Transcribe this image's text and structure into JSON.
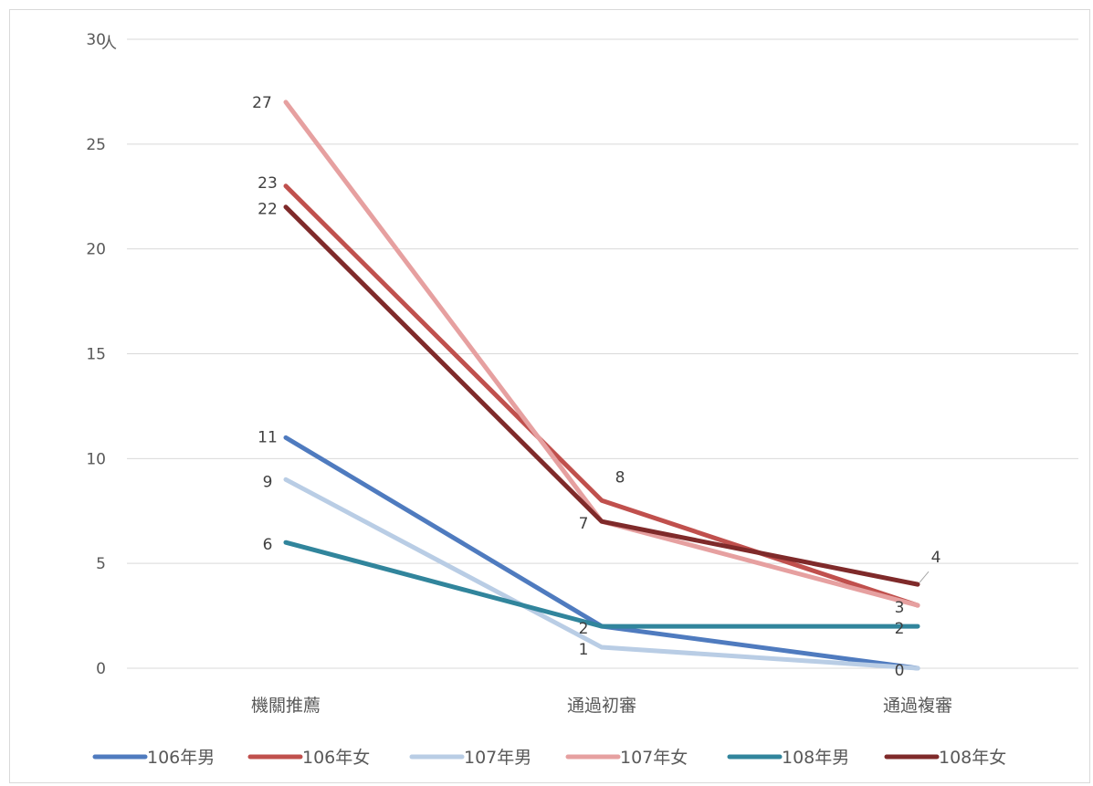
{
  "chart_data": {
    "type": "line",
    "categories": [
      "機關推薦",
      "通過初審",
      "通過複審"
    ],
    "y_unit": "人",
    "ylim": [
      0,
      30
    ],
    "yticks": [
      0,
      5,
      10,
      15,
      20,
      25,
      30
    ],
    "grid": true,
    "legend_position": "bottom",
    "series": [
      {
        "name": "106年男",
        "color": "#4f7bbf",
        "values": [
          11,
          2,
          0
        ],
        "labels": [
          "11",
          "",
          "0"
        ]
      },
      {
        "name": "106年女",
        "color": "#c0504d",
        "values": [
          23,
          8,
          3
        ],
        "labels": [
          "23",
          "8",
          ""
        ]
      },
      {
        "name": "107年男",
        "color": "#b9cde5",
        "values": [
          9,
          1,
          0
        ],
        "labels": [
          "9",
          "1",
          ""
        ]
      },
      {
        "name": "107年女",
        "color": "#e6a0a0",
        "values": [
          27,
          7,
          3
        ],
        "labels": [
          "27",
          "",
          "3"
        ]
      },
      {
        "name": "108年男",
        "color": "#31859c",
        "values": [
          6,
          2,
          2
        ],
        "labels": [
          "6",
          "2",
          "2"
        ]
      },
      {
        "name": "108年女",
        "color": "#7f2a2a",
        "values": [
          22,
          7,
          4
        ],
        "labels": [
          "22",
          "7",
          "4"
        ]
      }
    ]
  }
}
